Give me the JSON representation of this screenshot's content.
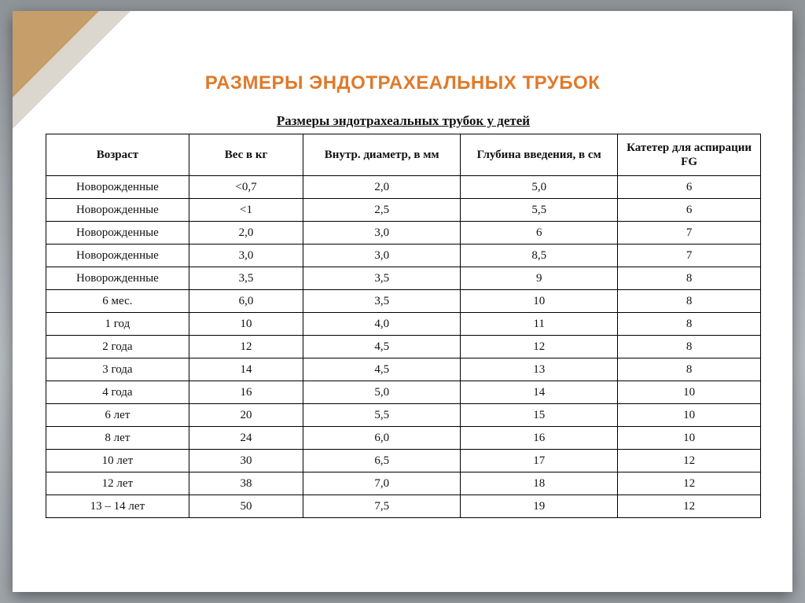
{
  "slide": {
    "title": "РАЗМЕРЫ ЭНДОТРАХЕАЛЬНЫХ ТРУБОК",
    "title_color": "#e07a2b",
    "title_fontsize": 24,
    "accent_color": "#c59b64",
    "background_gradient": [
      "#8f9498",
      "#a5aab0",
      "#b7bcc1",
      "#9fa4a9"
    ]
  },
  "table": {
    "type": "table",
    "caption": "Размеры эндотрахеальных трубок у детей",
    "caption_fontsize": 17,
    "border_color": "#000000",
    "background_color": "#ffffff",
    "text_color": "#111111",
    "font_family": "Times New Roman",
    "cell_fontsize": 15,
    "header_fontsize": 15,
    "column_widths_pct": [
      20,
      16,
      22,
      22,
      20
    ],
    "columns": [
      "Возраст",
      "Вес в кг",
      "Внутр. диаметр, в мм",
      "Глубина введения, в см",
      "Катетер для аспирации FG"
    ],
    "rows": [
      [
        "Новорожденные",
        "<0,7",
        "2,0",
        "5,0",
        "6"
      ],
      [
        "Новорожденные",
        "<1",
        "2,5",
        "5,5",
        "6"
      ],
      [
        "Новорожденные",
        "2,0",
        "3,0",
        "6",
        "7"
      ],
      [
        "Новорожденные",
        "3,0",
        "3,0",
        "8,5",
        "7"
      ],
      [
        "Новорожденные",
        "3,5",
        "3,5",
        "9",
        "8"
      ],
      [
        "6 мес.",
        "6,0",
        "3,5",
        "10",
        "8"
      ],
      [
        "1 год",
        "10",
        "4,0",
        "11",
        "8"
      ],
      [
        "2 года",
        "12",
        "4,5",
        "12",
        "8"
      ],
      [
        "3 года",
        "14",
        "4,5",
        "13",
        "8"
      ],
      [
        "4 года",
        "16",
        "5,0",
        "14",
        "10"
      ],
      [
        "6 лет",
        "20",
        "5,5",
        "15",
        "10"
      ],
      [
        "8 лет",
        "24",
        "6,0",
        "16",
        "10"
      ],
      [
        "10 лет",
        "30",
        "6,5",
        "17",
        "12"
      ],
      [
        "12 лет",
        "38",
        "7,0",
        "18",
        "12"
      ],
      [
        "13 – 14 лет",
        "50",
        "7,5",
        "19",
        "12"
      ]
    ]
  }
}
